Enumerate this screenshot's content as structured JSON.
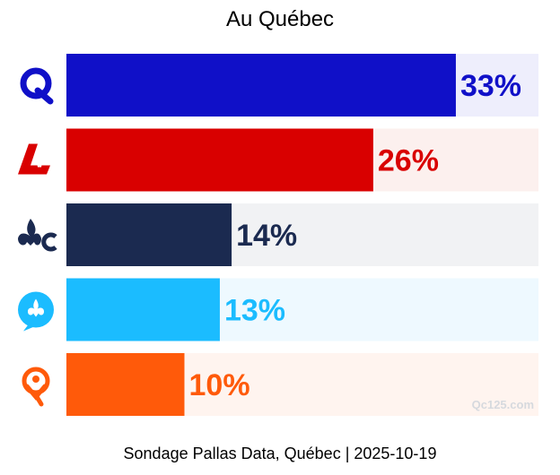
{
  "chart_data": {
    "type": "bar",
    "orientation": "horizontal",
    "title": "Au Québec",
    "categories": [
      "CAQ",
      "PLQ",
      "PQ",
      "PCQ",
      "QS"
    ],
    "values": [
      33,
      26,
      14,
      13,
      10
    ],
    "value_labels": [
      "33%",
      "26%",
      "14%",
      "13%",
      "10%"
    ],
    "colors": [
      "#1010c8",
      "#d90000",
      "#1b2a50",
      "#1bbcff",
      "#ff5a0a"
    ],
    "track_colors": [
      "#eeeefc",
      "#fcf0ee",
      "#f1f2f4",
      "#eef9ff",
      "#fff4ef"
    ],
    "icons": [
      "caq-logo-icon",
      "plq-logo-icon",
      "pq-logo-icon",
      "pcq-logo-icon",
      "qs-logo-icon"
    ],
    "xlim": [
      0,
      40
    ],
    "grid": false,
    "legend": "none"
  },
  "footer": "Sondage Pallas Data, Québec | 2025-10-19",
  "watermark": "Qc125.com"
}
